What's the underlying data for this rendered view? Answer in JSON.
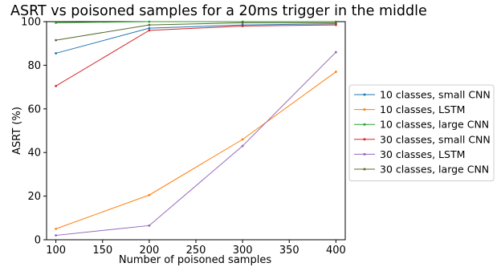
{
  "chart_data": {
    "type": "line",
    "title": "ASRT vs poisoned samples for a 20ms trigger in the middle",
    "xlabel": "Number of poisoned samples",
    "ylabel": "ASRT (%)",
    "xlim": [
      90,
      410
    ],
    "ylim": [
      0,
      100
    ],
    "xticks": [
      100,
      150,
      200,
      250,
      300,
      350,
      400
    ],
    "yticks": [
      0,
      20,
      40,
      60,
      80,
      100
    ],
    "grid": false,
    "legend_position": "right, outside plot",
    "x": [
      100,
      200,
      300,
      400
    ],
    "series": [
      {
        "name": "10 classes, small CNN",
        "color": "#1f77b4",
        "values": [
          85.5,
          97,
          98.5,
          99
        ]
      },
      {
        "name": "10 classes, LSTM",
        "color": "#ff7f0e",
        "values": [
          5,
          20.5,
          46,
          77
        ]
      },
      {
        "name": "10 classes, large CNN",
        "color": "#2ca02c",
        "values": [
          99.5,
          100,
          100,
          100
        ]
      },
      {
        "name": "30 classes, small CNN",
        "color": "#d62728",
        "values": [
          70.5,
          96,
          98,
          98.5
        ]
      },
      {
        "name": "30 classes, LSTM",
        "color": "#9467bd",
        "values": [
          2,
          6.5,
          43,
          86
        ]
      },
      {
        "name": "30 classes, large CNN",
        "color": "#556b2f",
        "values": [
          91.5,
          98.5,
          99.5,
          99.5
        ]
      }
    ]
  }
}
